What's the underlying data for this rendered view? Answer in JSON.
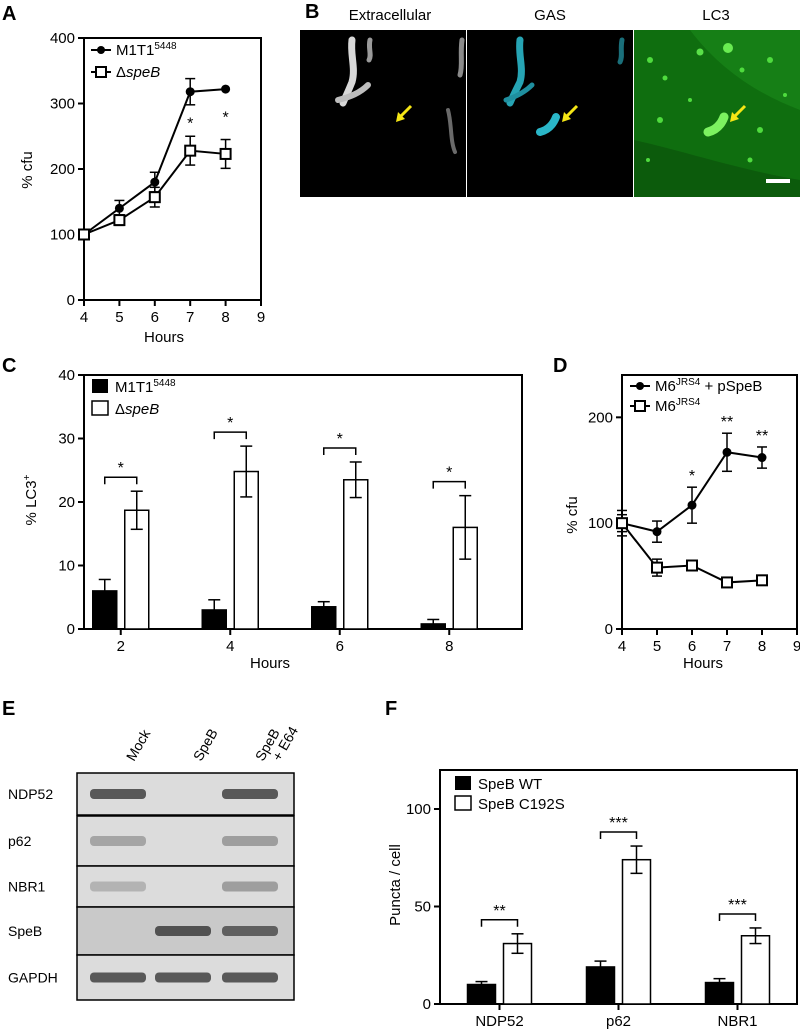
{
  "panels": {
    "A": "A",
    "B": "B",
    "C": "C",
    "D": "D",
    "E": "E",
    "F": "F"
  },
  "colors": {
    "ink": "#000000",
    "arrow": "#f5e615",
    "gas_cyan": "#2ab6c8",
    "lc3_green": "#2fbf1e",
    "lc3_bg": "#0f7a0f"
  },
  "microscopy": {
    "titles": [
      "Extracellular",
      "GAS",
      "LC3"
    ]
  },
  "blot": {
    "lanes": [
      "Mock",
      "SpeB",
      "SpeB\n+ E64"
    ],
    "lane_line1": [
      "Mock",
      "SpeB",
      "SpeB"
    ],
    "lane_line2": [
      "",
      "",
      "+ E64"
    ],
    "rows": [
      "NDP52",
      "p62",
      "NBR1",
      "SpeB",
      "GAPDH"
    ],
    "intensity": [
      [
        0.8,
        0.0,
        0.8
      ],
      [
        0.25,
        0.0,
        0.3
      ],
      [
        0.15,
        0.0,
        0.3
      ],
      [
        0.0,
        0.85,
        0.75
      ],
      [
        0.8,
        0.8,
        0.8
      ]
    ]
  },
  "chart_data": [
    {
      "panel": "A",
      "type": "line",
      "xlabel": "Hours",
      "ylabel": "% cfu",
      "xlim": [
        4,
        9
      ],
      "ylim": [
        0,
        400
      ],
      "xticks": [
        "4",
        "5",
        "6",
        "7",
        "8",
        "9"
      ],
      "yticks": [
        "0",
        "100",
        "200",
        "300",
        "400"
      ],
      "series": [
        {
          "name": "M1T1",
          "sup": "5448",
          "marker": "filled-circle",
          "x": [
            4,
            5,
            6,
            7,
            8
          ],
          "y": [
            100,
            140,
            180,
            318,
            322
          ],
          "err": [
            0,
            12,
            15,
            20,
            0
          ]
        },
        {
          "name": "Δ",
          "name_italic": "speB",
          "marker": "open-square",
          "x": [
            4,
            5,
            6,
            7,
            8
          ],
          "y": [
            100,
            122,
            157,
            228,
            223
          ],
          "err": [
            0,
            8,
            15,
            22,
            22
          ]
        }
      ],
      "annotations": [
        {
          "x": 7,
          "text": "*"
        },
        {
          "x": 8,
          "text": "*"
        }
      ]
    },
    {
      "panel": "C",
      "type": "bar",
      "xlabel": "Hours",
      "ylabel": "% LC3",
      "ylabel_sup": "+",
      "ylim": [
        0,
        40
      ],
      "yticks": [
        "0",
        "10",
        "20",
        "30",
        "40"
      ],
      "categories": [
        "2",
        "4",
        "6",
        "8"
      ],
      "series": [
        {
          "name": "M1T1",
          "sup": "5448",
          "fill": "filled",
          "values": [
            6,
            3,
            3.5,
            0.8
          ],
          "err": [
            1.8,
            1.6,
            0.8,
            0.7
          ]
        },
        {
          "name": "Δ",
          "name_italic": "speB",
          "fill": "open",
          "values": [
            18.7,
            24.8,
            23.5,
            16
          ],
          "err": [
            3,
            4,
            2.8,
            5
          ]
        }
      ],
      "annotations": [
        "*",
        "*",
        "*",
        "*"
      ]
    },
    {
      "panel": "D",
      "type": "line",
      "xlabel": "Hours",
      "ylabel": "% cfu",
      "xlim": [
        4,
        9
      ],
      "ylim": [
        0,
        240
      ],
      "xticks": [
        "4",
        "5",
        "6",
        "7",
        "8",
        "9"
      ],
      "yticks": [
        "0",
        "100",
        "200"
      ],
      "series": [
        {
          "name": "M6",
          "sup": "JRS4",
          "suffix": " + pSpeB",
          "marker": "filled-circle",
          "x": [
            4,
            5,
            6,
            7,
            8
          ],
          "y": [
            100,
            92,
            117,
            167,
            162
          ],
          "err": [
            12,
            10,
            17,
            18,
            10
          ]
        },
        {
          "name": "M6",
          "sup": "JRS4",
          "suffix": "",
          "marker": "open-square",
          "x": [
            4,
            5,
            6,
            7,
            8
          ],
          "y": [
            100,
            58,
            60,
            44,
            46
          ],
          "err": [
            8,
            8,
            4,
            4,
            3
          ]
        }
      ],
      "annotations": [
        {
          "x": 6,
          "text": "*"
        },
        {
          "x": 7,
          "text": "**"
        },
        {
          "x": 8,
          "text": "**"
        }
      ]
    },
    {
      "panel": "F",
      "type": "bar",
      "xlabel": "",
      "ylabel": "Puncta / cell",
      "ylim": [
        0,
        120
      ],
      "yticks": [
        "0",
        "50",
        "100"
      ],
      "categories": [
        "NDP52",
        "p62",
        "NBR1"
      ],
      "series": [
        {
          "name": "SpeB WT",
          "fill": "filled",
          "values": [
            10,
            19,
            11
          ],
          "err": [
            1.5,
            3,
            2
          ]
        },
        {
          "name": "SpeB C192S",
          "fill": "open",
          "values": [
            31,
            74,
            35
          ],
          "err": [
            5,
            7,
            4
          ]
        }
      ],
      "annotations": [
        "**",
        "***",
        "***"
      ]
    }
  ]
}
